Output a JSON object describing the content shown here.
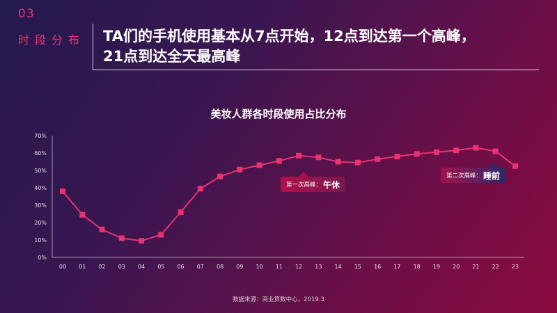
{
  "section": {
    "number": "03",
    "name": "时段分布"
  },
  "title": {
    "line1": "TA们的手机使用基本从7点开始，12点到达第一个高峰，",
    "line2": "21点到达全天最高峰"
  },
  "chart_data": {
    "type": "line",
    "title": "美妆人群各时段使用占比分布",
    "x": [
      "00",
      "01",
      "02",
      "03",
      "04",
      "05",
      "06",
      "07",
      "08",
      "09",
      "10",
      "11",
      "12",
      "13",
      "14",
      "15",
      "16",
      "17",
      "18",
      "19",
      "20",
      "21",
      "22",
      "23"
    ],
    "series": [
      {
        "values": [
          38,
          24.5,
          16,
          11,
          9.5,
          13,
          26,
          39.5,
          46.5,
          50.5,
          53,
          55.5,
          58.5,
          57.5,
          55,
          54.5,
          56.5,
          58,
          59.5,
          60.5,
          61.5,
          63,
          61,
          52.5
        ]
      }
    ],
    "ylim": [
      0,
      70
    ],
    "yticks": [
      "0%",
      "10%",
      "20%",
      "30%",
      "40%",
      "50%",
      "60%",
      "70%"
    ],
    "grid": false,
    "line_color": "#e8336f"
  },
  "annotations": {
    "peak1": {
      "prefix": "第一次高峰：",
      "label": "午休"
    },
    "peak2": {
      "prefix": "第二次高峰：",
      "label": "睡前"
    }
  },
  "source": "数据来源：商业算数中心，2019.3"
}
